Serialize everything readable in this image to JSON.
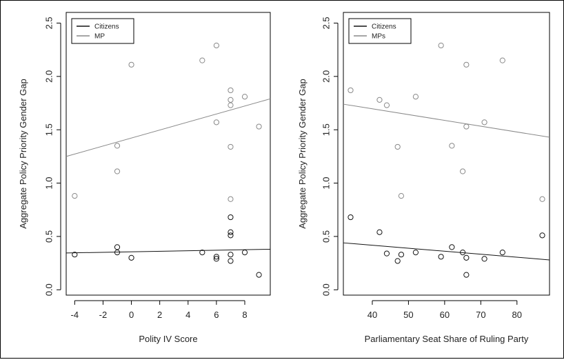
{
  "chart_data": [
    {
      "type": "scatter",
      "title": "",
      "xlabel": "Polity IV Score",
      "ylabel": "Aggregate Policy Priority Gender Gap",
      "xlim": [
        -4.6,
        9.8
      ],
      "ylim": [
        -0.05,
        2.6
      ],
      "xticks": [
        -4,
        -2,
        0,
        2,
        4,
        6,
        8
      ],
      "yticks": [
        0.0,
        0.5,
        1.0,
        1.5,
        2.0,
        2.5
      ],
      "ytick_labels": [
        "0.0",
        "0.5",
        "1.0",
        "1.5",
        "2.0",
        "2.5"
      ],
      "grid": false,
      "legend": {
        "position": "top-left",
        "entries": [
          "Citizens",
          "MP"
        ],
        "colors": [
          "#111111",
          "#888888"
        ]
      },
      "series": [
        {
          "name": "Citizens",
          "color": "#111111",
          "points": [
            [
              -4,
              0.33
            ],
            [
              -1,
              0.4
            ],
            [
              -1,
              0.35
            ],
            [
              0,
              0.3
            ],
            [
              5,
              0.35
            ],
            [
              6,
              0.31
            ],
            [
              6,
              0.29
            ],
            [
              7,
              0.27
            ],
            [
              7,
              0.33
            ],
            [
              7,
              0.51
            ],
            [
              7,
              0.54
            ],
            [
              7,
              0.68
            ],
            [
              8,
              0.35
            ],
            [
              9,
              0.14
            ]
          ],
          "fit": [
            [
              -4.6,
              0.345
            ],
            [
              9.8,
              0.38
            ]
          ]
        },
        {
          "name": "MP",
          "color": "#888888",
          "points": [
            [
              -4,
              0.88
            ],
            [
              -1,
              1.11
            ],
            [
              -1,
              1.35
            ],
            [
              0,
              2.11
            ],
            [
              5,
              2.15
            ],
            [
              6,
              2.29
            ],
            [
              6,
              1.57
            ],
            [
              7,
              1.87
            ],
            [
              7,
              1.78
            ],
            [
              7,
              1.73
            ],
            [
              7,
              1.34
            ],
            [
              7,
              0.85
            ],
            [
              8,
              1.81
            ],
            [
              9,
              1.53
            ]
          ],
          "fit": [
            [
              -4.6,
              1.25
            ],
            [
              9.8,
              1.79
            ]
          ]
        }
      ]
    },
    {
      "type": "scatter",
      "title": "",
      "xlabel": "Parliamentary Seat Share of Ruling Party",
      "ylabel": "Aggregate Policy Priority Gender Gap",
      "xlim": [
        32,
        89
      ],
      "ylim": [
        -0.05,
        2.6
      ],
      "xticks": [
        40,
        50,
        60,
        70,
        80
      ],
      "yticks": [
        0.0,
        0.5,
        1.0,
        1.5,
        2.0,
        2.5
      ],
      "ytick_labels": [
        "0.0",
        "0.5",
        "1.0",
        "1.5",
        "2.0",
        "2.5"
      ],
      "grid": false,
      "legend": {
        "position": "top-left",
        "entries": [
          "Citizens",
          "MPs"
        ],
        "colors": [
          "#111111",
          "#888888"
        ]
      },
      "series": [
        {
          "name": "Citizens",
          "color": "#111111",
          "points": [
            [
              34,
              0.68
            ],
            [
              42,
              0.54
            ],
            [
              44,
              0.34
            ],
            [
              47,
              0.27
            ],
            [
              48,
              0.33
            ],
            [
              52,
              0.35
            ],
            [
              59,
              0.31
            ],
            [
              62,
              0.4
            ],
            [
              65,
              0.35
            ],
            [
              66,
              0.3
            ],
            [
              66,
              0.14
            ],
            [
              71,
              0.29
            ],
            [
              76,
              0.35
            ],
            [
              87,
              0.51
            ]
          ],
          "fit": [
            [
              32,
              0.44
            ],
            [
              89,
              0.28
            ]
          ]
        },
        {
          "name": "MPs",
          "color": "#888888",
          "points": [
            [
              34,
              1.87
            ],
            [
              42,
              1.78
            ],
            [
              44,
              1.73
            ],
            [
              47,
              1.34
            ],
            [
              48,
              0.88
            ],
            [
              52,
              1.81
            ],
            [
              59,
              2.29
            ],
            [
              62,
              1.35
            ],
            [
              65,
              1.11
            ],
            [
              66,
              2.11
            ],
            [
              66,
              1.53
            ],
            [
              71,
              1.57
            ],
            [
              76,
              2.15
            ],
            [
              87,
              0.85
            ]
          ],
          "fit": [
            [
              32,
              1.74
            ],
            [
              89,
              1.43
            ]
          ]
        }
      ]
    }
  ]
}
